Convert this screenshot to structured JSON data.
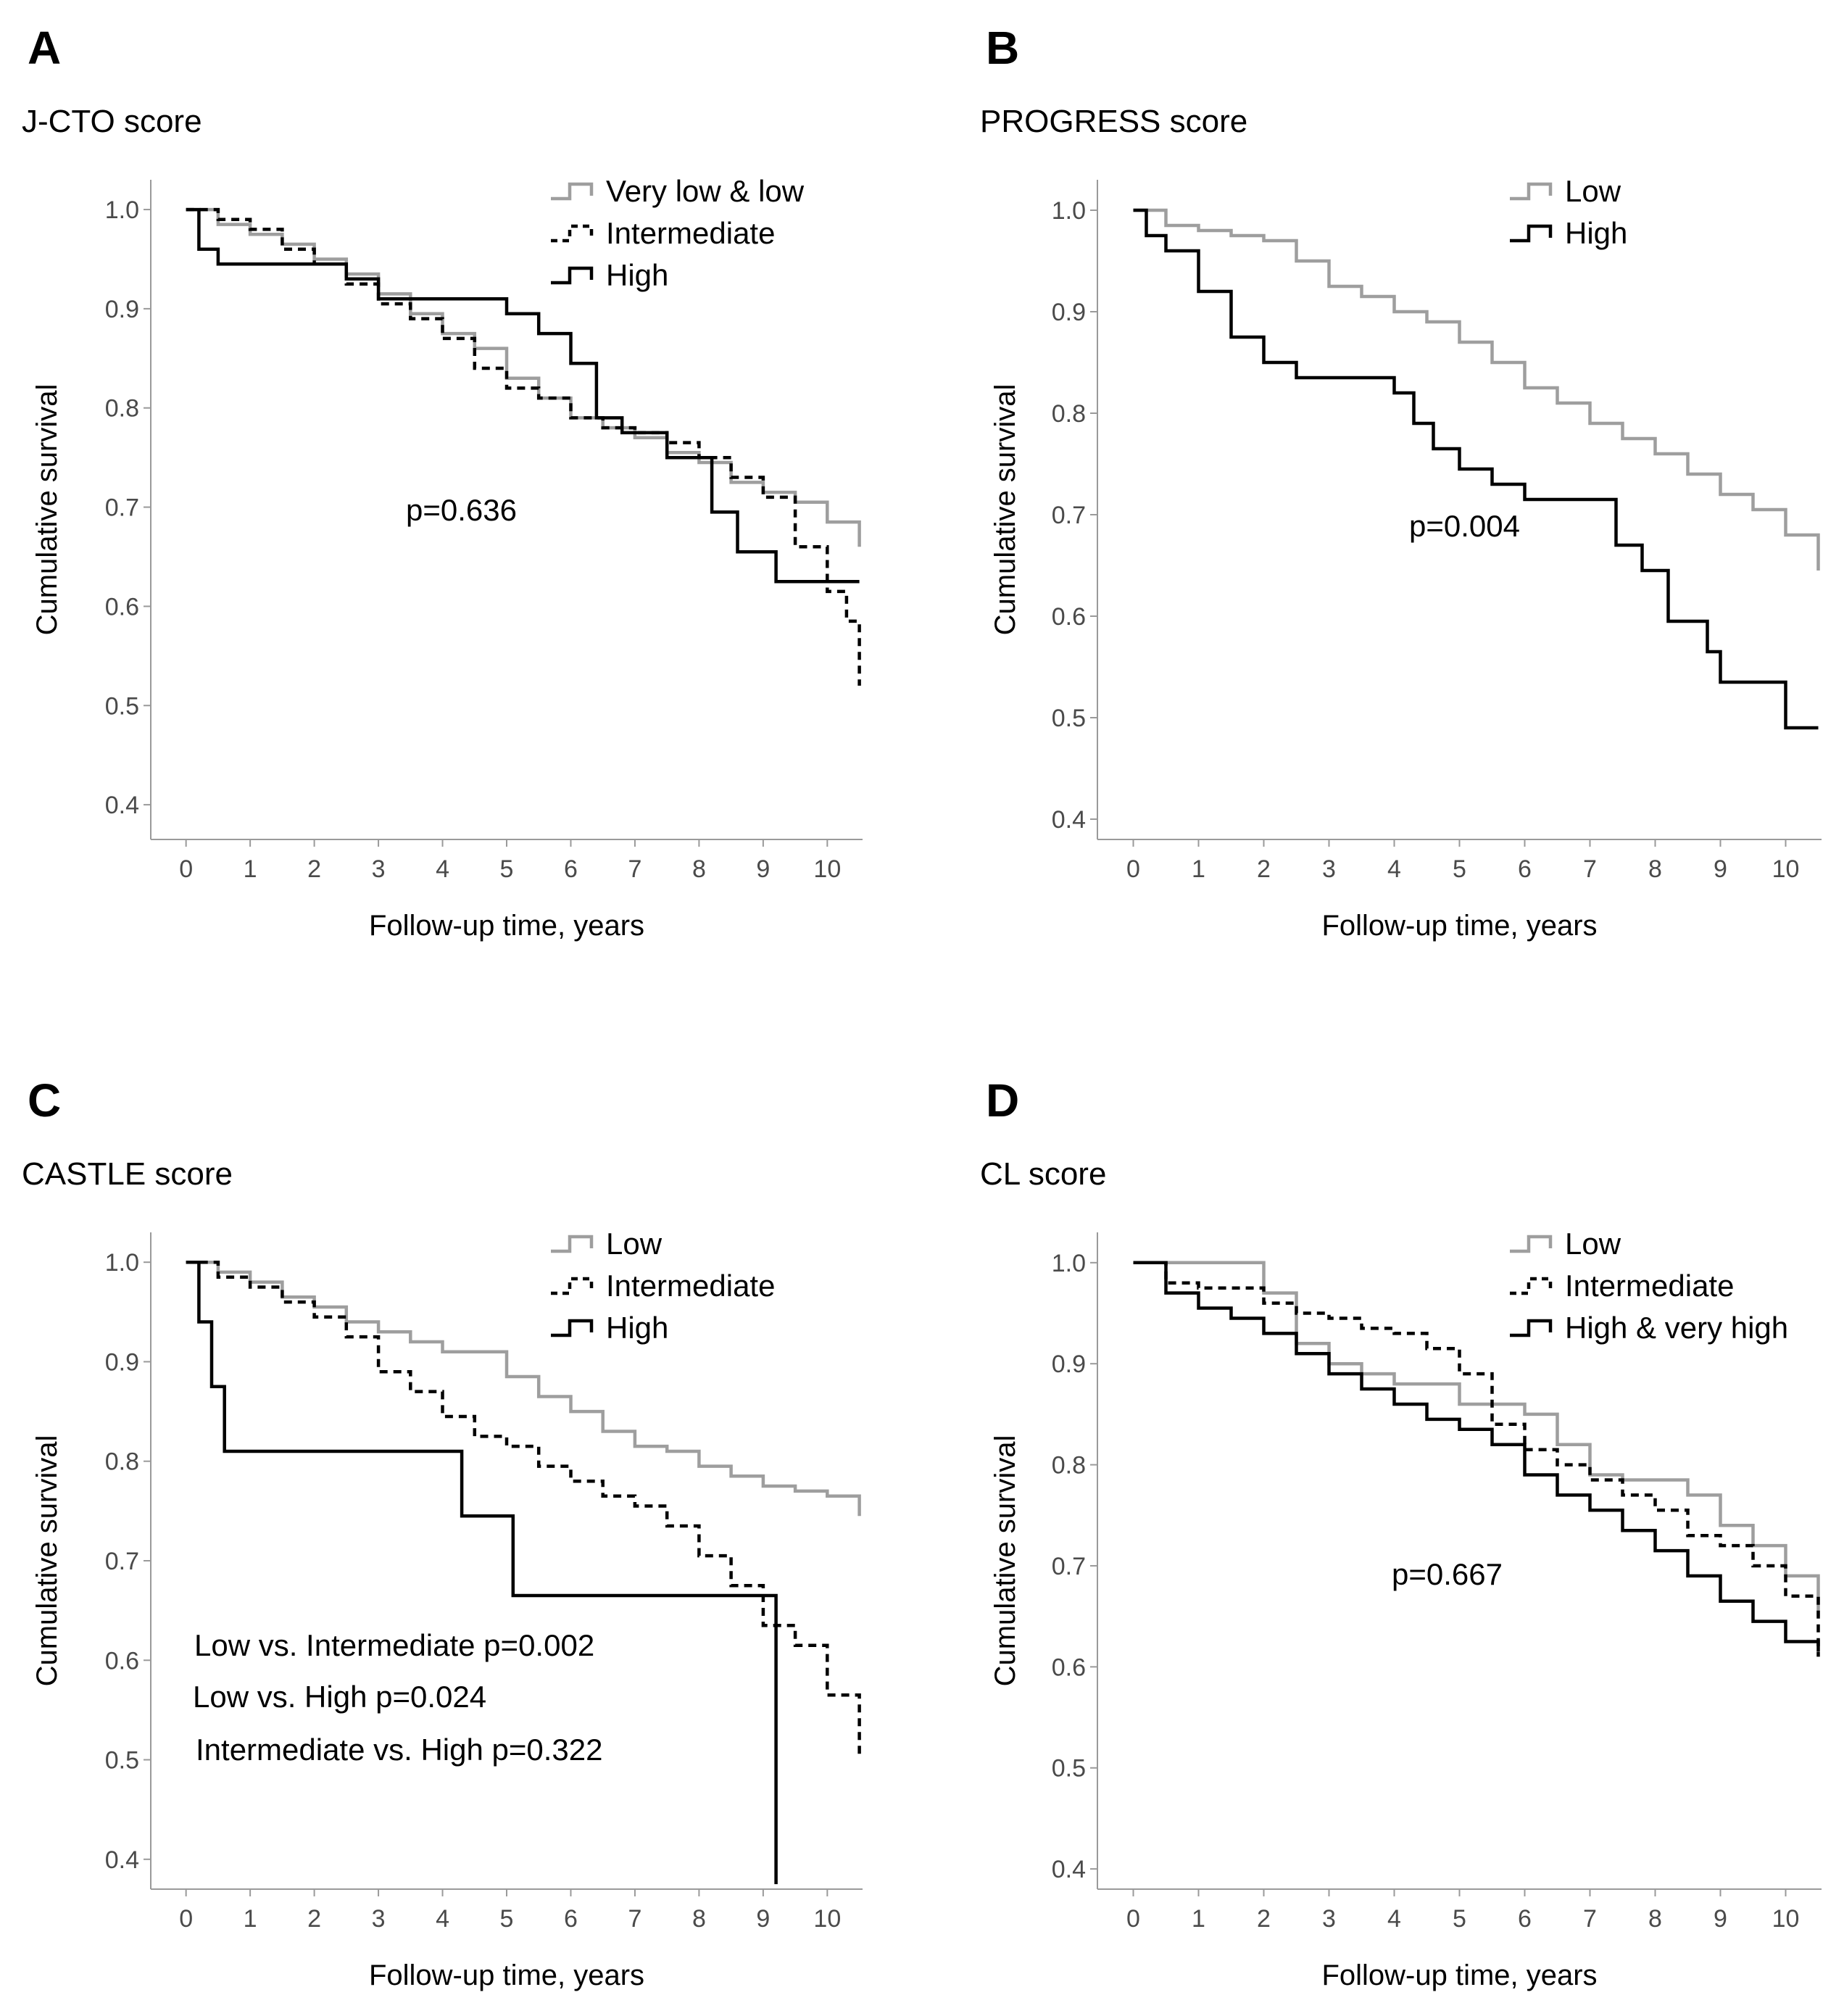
{
  "chart_data": [
    {
      "panel": "A",
      "title": "J-CTO score",
      "type": "line",
      "xlabel": "Follow-up time, years",
      "ylabel": "Cumulative survival",
      "xlim": [
        -0.55,
        10.55
      ],
      "ylim": [
        0.365,
        1.03
      ],
      "x_ticks": [
        0,
        1,
        2,
        3,
        4,
        5,
        6,
        7,
        8,
        9,
        10
      ],
      "y_ticks": [
        "0.4",
        "0.5",
        "0.6",
        "0.7",
        "0.8",
        "0.9",
        "1.0"
      ],
      "legend_position": "top-right",
      "annotations": [
        "p=0.636"
      ],
      "series": [
        {
          "name": "Very low & low",
          "style": "gray",
          "x": [
            0,
            0.5,
            1.0,
            1.5,
            2.0,
            2.5,
            3.0,
            3.5,
            4.0,
            4.5,
            5.0,
            5.5,
            6.0,
            6.5,
            7.0,
            7.5,
            8.0,
            8.5,
            9.0,
            9.5,
            10.0,
            10.5
          ],
          "y": [
            1.0,
            0.985,
            0.975,
            0.965,
            0.95,
            0.935,
            0.915,
            0.895,
            0.875,
            0.86,
            0.83,
            0.81,
            0.79,
            0.78,
            0.77,
            0.755,
            0.745,
            0.725,
            0.715,
            0.705,
            0.685,
            0.66
          ]
        },
        {
          "name": "Intermediate",
          "style": "dashed",
          "x": [
            0,
            0.5,
            1.0,
            1.5,
            2.0,
            2.5,
            3.0,
            3.5,
            4.0,
            4.5,
            5.0,
            5.5,
            6.0,
            6.5,
            7.0,
            7.5,
            8.0,
            8.5,
            9.0,
            9.5,
            10.0,
            10.3,
            10.5
          ],
          "y": [
            1.0,
            0.99,
            0.98,
            0.96,
            0.945,
            0.925,
            0.905,
            0.89,
            0.87,
            0.84,
            0.82,
            0.81,
            0.79,
            0.78,
            0.775,
            0.765,
            0.75,
            0.73,
            0.71,
            0.66,
            0.615,
            0.585,
            0.52
          ]
        },
        {
          "name": "High",
          "style": "black",
          "x": [
            0,
            0.2,
            0.5,
            1.0,
            2.0,
            2.5,
            3.0,
            4.0,
            5.0,
            5.5,
            6.0,
            6.4,
            6.8,
            7.5,
            8.2,
            8.6,
            9.2,
            10.5
          ],
          "y": [
            1.0,
            0.96,
            0.945,
            0.945,
            0.945,
            0.93,
            0.91,
            0.91,
            0.895,
            0.875,
            0.845,
            0.79,
            0.775,
            0.75,
            0.695,
            0.655,
            0.625,
            0.625
          ]
        }
      ]
    },
    {
      "panel": "B",
      "title": "PROGRESS score",
      "type": "line",
      "xlabel": "Follow-up time, years",
      "ylabel": "Cumulative survival",
      "xlim": [
        -0.55,
        10.55
      ],
      "ylim": [
        0.38,
        1.03
      ],
      "x_ticks": [
        0,
        1,
        2,
        3,
        4,
        5,
        6,
        7,
        8,
        9,
        10
      ],
      "y_ticks": [
        "0.4",
        "0.5",
        "0.6",
        "0.7",
        "0.8",
        "0.9",
        "1.0"
      ],
      "legend_position": "top-right",
      "annotations": [
        "p=0.004"
      ],
      "series": [
        {
          "name": "Low",
          "style": "gray",
          "x": [
            0,
            0.5,
            1.0,
            1.5,
            2.0,
            2.5,
            3.0,
            3.5,
            4.0,
            4.5,
            5.0,
            5.5,
            6.0,
            6.5,
            7.0,
            7.5,
            8.0,
            8.5,
            9.0,
            9.5,
            10.0,
            10.5
          ],
          "y": [
            1.0,
            0.985,
            0.98,
            0.975,
            0.97,
            0.95,
            0.925,
            0.915,
            0.9,
            0.89,
            0.87,
            0.85,
            0.825,
            0.81,
            0.79,
            0.775,
            0.76,
            0.74,
            0.72,
            0.705,
            0.68,
            0.645
          ]
        },
        {
          "name": "High",
          "style": "black",
          "x": [
            0,
            0.2,
            0.5,
            1.0,
            1.5,
            2.0,
            2.5,
            3.0,
            3.5,
            4.0,
            4.3,
            4.6,
            5.0,
            5.5,
            6.0,
            6.5,
            7.0,
            7.4,
            7.8,
            8.2,
            8.8,
            9.0,
            9.5,
            10.0,
            10.5
          ],
          "y": [
            1.0,
            0.975,
            0.96,
            0.92,
            0.875,
            0.85,
            0.835,
            0.835,
            0.835,
            0.82,
            0.79,
            0.765,
            0.745,
            0.73,
            0.715,
            0.715,
            0.715,
            0.67,
            0.645,
            0.595,
            0.565,
            0.535,
            0.535,
            0.49,
            0.49
          ]
        }
      ]
    },
    {
      "panel": "C",
      "title": "CASTLE score",
      "type": "line",
      "xlabel": "Follow-up time, years",
      "ylabel": "Cumulative survival",
      "xlim": [
        -0.55,
        10.55
      ],
      "ylim": [
        0.37,
        1.03
      ],
      "x_ticks": [
        0,
        1,
        2,
        3,
        4,
        5,
        6,
        7,
        8,
        9,
        10
      ],
      "y_ticks": [
        "0.4",
        "0.5",
        "0.6",
        "0.7",
        "0.8",
        "0.9",
        "1.0"
      ],
      "legend_position": "top-right",
      "annotations": [
        "Low vs. Intermediate p=0.002",
        "Low vs. High p=0.024",
        "Intermediate vs. High p=0.322"
      ],
      "series": [
        {
          "name": "Low",
          "style": "gray",
          "x": [
            0,
            0.5,
            1.0,
            1.5,
            2.0,
            2.5,
            3.0,
            3.5,
            4.0,
            4.5,
            5.0,
            5.5,
            6.0,
            6.5,
            7.0,
            7.5,
            8.0,
            8.5,
            9.0,
            9.5,
            10.0,
            10.5
          ],
          "y": [
            1.0,
            0.99,
            0.98,
            0.965,
            0.955,
            0.94,
            0.93,
            0.92,
            0.91,
            0.91,
            0.885,
            0.865,
            0.85,
            0.83,
            0.815,
            0.81,
            0.795,
            0.785,
            0.775,
            0.77,
            0.765,
            0.745
          ]
        },
        {
          "name": "Intermediate",
          "style": "dashed",
          "x": [
            0,
            0.5,
            1.0,
            1.5,
            2.0,
            2.5,
            3.0,
            3.5,
            4.0,
            4.5,
            5.0,
            5.5,
            6.0,
            6.5,
            7.0,
            7.5,
            8.0,
            8.5,
            9.0,
            9.5,
            10.0,
            10.5
          ],
          "y": [
            1.0,
            0.985,
            0.975,
            0.96,
            0.945,
            0.925,
            0.89,
            0.87,
            0.845,
            0.825,
            0.815,
            0.795,
            0.78,
            0.765,
            0.755,
            0.735,
            0.705,
            0.675,
            0.635,
            0.615,
            0.565,
            0.505
          ]
        },
        {
          "name": "High",
          "style": "black",
          "x": [
            0,
            0.2,
            0.4,
            0.6,
            1.0,
            2.0,
            3.0,
            4.0,
            4.3,
            5.0,
            5.1,
            6.0,
            7.0,
            8.0,
            9.2,
            9.2
          ],
          "y": [
            1.0,
            0.94,
            0.875,
            0.81,
            0.81,
            0.81,
            0.81,
            0.81,
            0.745,
            0.745,
            0.665,
            0.665,
            0.665,
            0.665,
            0.665,
            0.375
          ]
        }
      ]
    },
    {
      "panel": "D",
      "title": "CL score",
      "type": "line",
      "xlabel": "Follow-up time, years",
      "ylabel": "Cumulative survival",
      "xlim": [
        -0.55,
        10.55
      ],
      "ylim": [
        0.38,
        1.03
      ],
      "x_ticks": [
        0,
        1,
        2,
        3,
        4,
        5,
        6,
        7,
        8,
        9,
        10
      ],
      "y_ticks": [
        "0.4",
        "0.5",
        "0.6",
        "0.7",
        "0.8",
        "0.9",
        "1.0"
      ],
      "legend_position": "top-right",
      "annotations": [
        "p=0.667"
      ],
      "series": [
        {
          "name": "Low",
          "style": "gray",
          "x": [
            0,
            0.5,
            1.0,
            1.5,
            2.0,
            2.5,
            3.0,
            3.5,
            4.0,
            4.5,
            5.0,
            5.5,
            6.0,
            6.5,
            7.0,
            7.5,
            8.0,
            8.5,
            9.0,
            9.5,
            10.0,
            10.5
          ],
          "y": [
            1.0,
            1.0,
            1.0,
            1.0,
            0.97,
            0.92,
            0.9,
            0.89,
            0.88,
            0.88,
            0.86,
            0.86,
            0.85,
            0.82,
            0.79,
            0.785,
            0.785,
            0.77,
            0.74,
            0.72,
            0.69,
            0.65
          ]
        },
        {
          "name": "Intermediate",
          "style": "dashed",
          "x": [
            0,
            0.5,
            1.0,
            1.5,
            2.0,
            2.5,
            3.0,
            3.5,
            4.0,
            4.5,
            5.0,
            5.5,
            6.0,
            6.5,
            7.0,
            7.5,
            8.0,
            8.5,
            9.0,
            9.5,
            10.0,
            10.5
          ],
          "y": [
            1.0,
            0.98,
            0.975,
            0.975,
            0.96,
            0.95,
            0.945,
            0.935,
            0.93,
            0.915,
            0.89,
            0.84,
            0.815,
            0.8,
            0.785,
            0.77,
            0.755,
            0.73,
            0.72,
            0.7,
            0.67,
            0.61
          ]
        },
        {
          "name": "High & very high",
          "style": "black",
          "x": [
            0,
            0.5,
            1.0,
            1.5,
            2.0,
            2.5,
            3.0,
            3.5,
            4.0,
            4.5,
            5.0,
            5.5,
            6.0,
            6.5,
            7.0,
            7.5,
            8.0,
            8.5,
            9.0,
            9.5,
            10.0,
            10.5
          ],
          "y": [
            1.0,
            0.97,
            0.955,
            0.945,
            0.93,
            0.91,
            0.89,
            0.875,
            0.86,
            0.845,
            0.835,
            0.82,
            0.79,
            0.77,
            0.755,
            0.735,
            0.715,
            0.69,
            0.665,
            0.645,
            0.625,
            0.615
          ]
        }
      ]
    }
  ]
}
